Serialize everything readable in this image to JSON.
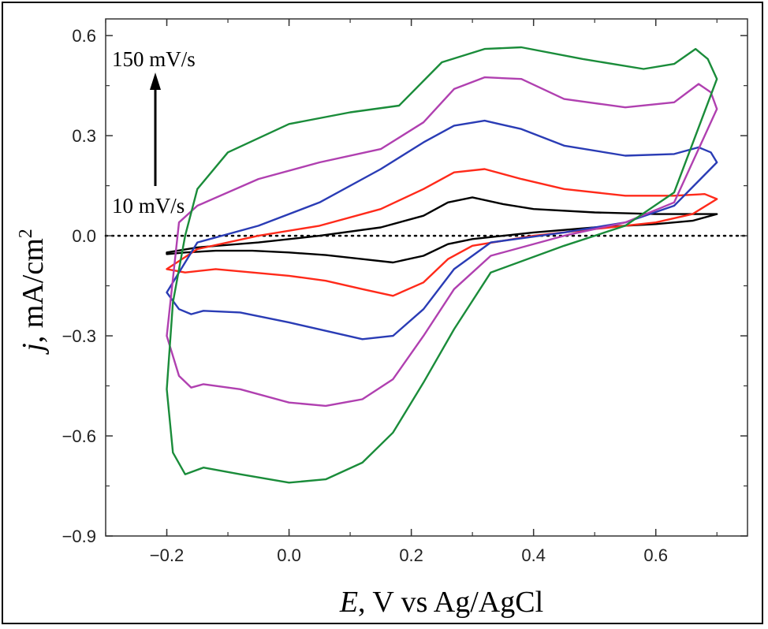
{
  "chart_data": {
    "type": "line",
    "xlabel_italic": "E",
    "xlabel_rest": ", V vs Ag/AgCl",
    "ylabel_italic": "j",
    "ylabel_rest": ", mA/cm",
    "ylabel_sup": "2",
    "xlim": [
      -0.3,
      0.75
    ],
    "ylim": [
      -0.9,
      0.65
    ],
    "xticks": [
      -0.2,
      0.0,
      0.2,
      0.4,
      0.6
    ],
    "xtick_labels": [
      "−0.2",
      "0.0",
      "0.2",
      "0.4",
      "0.6"
    ],
    "yticks": [
      0.6,
      0.3,
      0.0,
      -0.3,
      -0.6,
      -0.9
    ],
    "ytick_labels": [
      "0.6",
      "0.3",
      "0.0",
      "−0.3",
      "−0.6",
      "−0.9"
    ],
    "zero_line": "dotted",
    "annotations": {
      "top": "150 mV/s",
      "bottom": "10 mV/s",
      "arrow": "up"
    },
    "series": [
      {
        "color": "#000000",
        "points": [
          [
            -0.2,
            -0.055
          ],
          [
            -0.17,
            -0.05
          ],
          [
            -0.12,
            -0.045
          ],
          [
            -0.06,
            -0.045
          ],
          [
            0.0,
            -0.05
          ],
          [
            0.06,
            -0.058
          ],
          [
            0.12,
            -0.07
          ],
          [
            0.17,
            -0.08
          ],
          [
            0.22,
            -0.06
          ],
          [
            0.26,
            -0.025
          ],
          [
            0.3,
            -0.01
          ],
          [
            0.4,
            0.01
          ],
          [
            0.5,
            0.025
          ],
          [
            0.6,
            0.035
          ],
          [
            0.66,
            0.045
          ],
          [
            0.7,
            0.065
          ],
          [
            0.67,
            0.065
          ],
          [
            0.6,
            0.065
          ],
          [
            0.5,
            0.07
          ],
          [
            0.4,
            0.08
          ],
          [
            0.35,
            0.095
          ],
          [
            0.3,
            0.115
          ],
          [
            0.26,
            0.1
          ],
          [
            0.22,
            0.06
          ],
          [
            0.15,
            0.025
          ],
          [
            0.05,
            0.0
          ],
          [
            -0.05,
            -0.02
          ],
          [
            -0.15,
            -0.035
          ],
          [
            -0.2,
            -0.05
          ]
        ]
      },
      {
        "color": "#ff2a1a",
        "points": [
          [
            -0.2,
            -0.1
          ],
          [
            -0.17,
            -0.11
          ],
          [
            -0.12,
            -0.1
          ],
          [
            -0.06,
            -0.11
          ],
          [
            0.0,
            -0.12
          ],
          [
            0.06,
            -0.135
          ],
          [
            0.12,
            -0.16
          ],
          [
            0.17,
            -0.18
          ],
          [
            0.22,
            -0.14
          ],
          [
            0.26,
            -0.07
          ],
          [
            0.3,
            -0.03
          ],
          [
            0.4,
            0.0
          ],
          [
            0.5,
            0.02
          ],
          [
            0.6,
            0.04
          ],
          [
            0.66,
            0.065
          ],
          [
            0.7,
            0.11
          ],
          [
            0.68,
            0.125
          ],
          [
            0.63,
            0.12
          ],
          [
            0.55,
            0.12
          ],
          [
            0.45,
            0.14
          ],
          [
            0.38,
            0.17
          ],
          [
            0.32,
            0.2
          ],
          [
            0.27,
            0.19
          ],
          [
            0.22,
            0.14
          ],
          [
            0.15,
            0.08
          ],
          [
            0.05,
            0.03
          ],
          [
            -0.05,
            0.0
          ],
          [
            -0.15,
            -0.04
          ],
          [
            -0.2,
            -0.1
          ]
        ]
      },
      {
        "color": "#2a3cb5",
        "points": [
          [
            -0.2,
            -0.17
          ],
          [
            -0.18,
            -0.22
          ],
          [
            -0.16,
            -0.235
          ],
          [
            -0.14,
            -0.225
          ],
          [
            -0.08,
            -0.23
          ],
          [
            0.0,
            -0.26
          ],
          [
            0.06,
            -0.285
          ],
          [
            0.12,
            -0.31
          ],
          [
            0.17,
            -0.3
          ],
          [
            0.22,
            -0.22
          ],
          [
            0.27,
            -0.1
          ],
          [
            0.33,
            -0.02
          ],
          [
            0.45,
            0.01
          ],
          [
            0.55,
            0.04
          ],
          [
            0.63,
            0.09
          ],
          [
            0.7,
            0.22
          ],
          [
            0.69,
            0.25
          ],
          [
            0.67,
            0.265
          ],
          [
            0.63,
            0.245
          ],
          [
            0.55,
            0.24
          ],
          [
            0.45,
            0.27
          ],
          [
            0.38,
            0.32
          ],
          [
            0.32,
            0.345
          ],
          [
            0.27,
            0.33
          ],
          [
            0.22,
            0.28
          ],
          [
            0.15,
            0.2
          ],
          [
            0.05,
            0.1
          ],
          [
            -0.05,
            0.03
          ],
          [
            -0.15,
            -0.02
          ],
          [
            -0.2,
            -0.17
          ]
        ]
      },
      {
        "color": "#b040b0",
        "points": [
          [
            -0.2,
            -0.3
          ],
          [
            -0.18,
            -0.42
          ],
          [
            -0.16,
            -0.455
          ],
          [
            -0.14,
            -0.445
          ],
          [
            -0.08,
            -0.46
          ],
          [
            0.0,
            -0.5
          ],
          [
            0.06,
            -0.51
          ],
          [
            0.12,
            -0.49
          ],
          [
            0.17,
            -0.43
          ],
          [
            0.22,
            -0.3
          ],
          [
            0.27,
            -0.16
          ],
          [
            0.33,
            -0.06
          ],
          [
            0.45,
            0.0
          ],
          [
            0.55,
            0.04
          ],
          [
            0.63,
            0.1
          ],
          [
            0.7,
            0.38
          ],
          [
            0.69,
            0.43
          ],
          [
            0.67,
            0.455
          ],
          [
            0.63,
            0.4
          ],
          [
            0.55,
            0.385
          ],
          [
            0.45,
            0.41
          ],
          [
            0.38,
            0.47
          ],
          [
            0.32,
            0.475
          ],
          [
            0.27,
            0.44
          ],
          [
            0.22,
            0.34
          ],
          [
            0.15,
            0.26
          ],
          [
            0.05,
            0.22
          ],
          [
            -0.05,
            0.17
          ],
          [
            -0.15,
            0.09
          ],
          [
            -0.18,
            0.04
          ],
          [
            -0.2,
            -0.3
          ]
        ]
      },
      {
        "color": "#1a8c3a",
        "points": [
          [
            -0.2,
            -0.46
          ],
          [
            -0.19,
            -0.65
          ],
          [
            -0.17,
            -0.715
          ],
          [
            -0.14,
            -0.695
          ],
          [
            -0.08,
            -0.715
          ],
          [
            0.0,
            -0.74
          ],
          [
            0.06,
            -0.73
          ],
          [
            0.12,
            -0.68
          ],
          [
            0.17,
            -0.59
          ],
          [
            0.22,
            -0.44
          ],
          [
            0.27,
            -0.28
          ],
          [
            0.33,
            -0.11
          ],
          [
            0.45,
            -0.03
          ],
          [
            0.55,
            0.03
          ],
          [
            0.63,
            0.13
          ],
          [
            0.7,
            0.47
          ],
          [
            0.685,
            0.53
          ],
          [
            0.665,
            0.56
          ],
          [
            0.63,
            0.515
          ],
          [
            0.58,
            0.5
          ],
          [
            0.48,
            0.53
          ],
          [
            0.38,
            0.565
          ],
          [
            0.32,
            0.56
          ],
          [
            0.25,
            0.52
          ],
          [
            0.18,
            0.39
          ],
          [
            0.1,
            0.37
          ],
          [
            0.0,
            0.335
          ],
          [
            -0.1,
            0.25
          ],
          [
            -0.15,
            0.14
          ],
          [
            -0.17,
            0.0
          ],
          [
            -0.19,
            -0.2
          ],
          [
            -0.2,
            -0.46
          ]
        ]
      }
    ]
  }
}
